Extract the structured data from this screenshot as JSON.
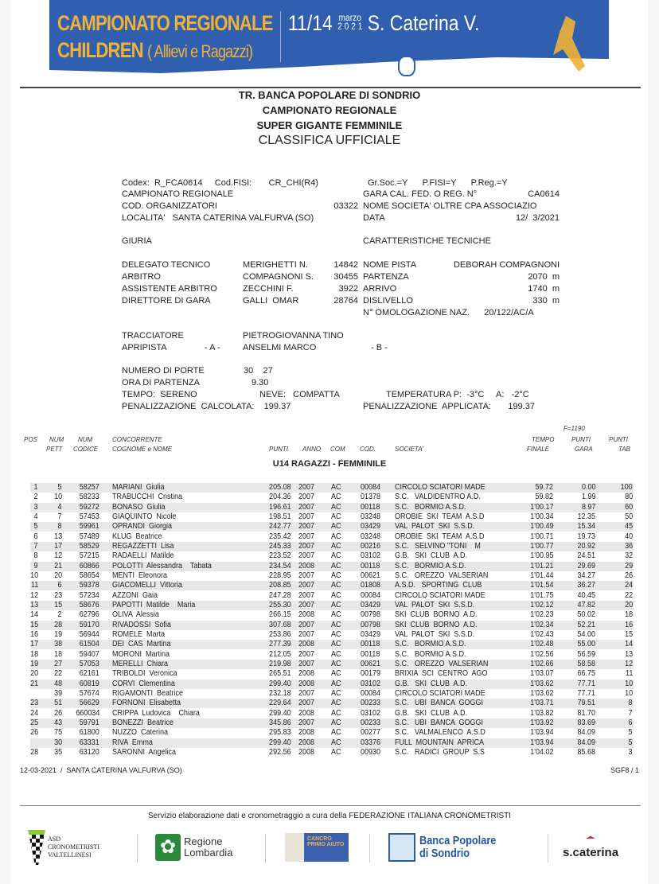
{
  "banner": {
    "line1": "CAMPIONATO REGIONALE",
    "line2": "CHILDREN",
    "line2_sub": "( Allievi e Ragazzi)",
    "dates": "11/14",
    "month": "marzo",
    "year": "2 0 2 1",
    "place": "S. Caterina V."
  },
  "title": {
    "l1": "TR. BANCA POPOLARE DI SONDRIO",
    "l2": "CAMPIONATO REGIONALE",
    "l3": "SUPER GIGANTE FEMMINILE",
    "l4": "CLASSIFICA UFFICIALE"
  },
  "info": {
    "codex": "Codex:  R_FCA0614     Cod.FISI:       CR_CHI(R4)",
    "flags": "Gr.Soc.=Y      P.FISI=Y      P.Reg.=Y",
    "camp": "CAMPIONATO REGIONALE",
    "gara_label": "GARA CAL. FED. O REG. N°",
    "gara_val": "CA0614",
    "cod_org_label": "COD. ORGANIZZATORI",
    "cod_org_val": "03322",
    "nome_soc": "NOME SOCIETA' OLTRE CPA ASSOCIAZIO",
    "localita": "LOCALITA'   SANTA CATERINA VALFURVA (SO)",
    "data_label": "DATA",
    "data_val": "12/  3/2021",
    "giuria": "GIURIA",
    "caratt": "CARATTERISTICHE  TECNICHE",
    "jury": [
      {
        "role": "DELEGATO TECNICO",
        "name": "MERIGHETTI N.",
        "code": "14842",
        "tl": "NOME PISTA",
        "tv": "DEBORAH COMPAGNONI"
      },
      {
        "role": "ARBITRO",
        "name": "COMPAGNONI S.",
        "code": "30455",
        "tl": "PARTENZA",
        "tv": "2070  m"
      },
      {
        "role": "ASSISTENTE ARBITRO",
        "name": "ZECCHINI F.",
        "code": "3922",
        "tl": "ARRIVO",
        "tv": "1740  m"
      },
      {
        "role": "DIRETTORE DI GARA",
        "name": "GALLI  OMAR",
        "code": "28764",
        "tl": "DISLIVELLO",
        "tv": "330  m"
      }
    ],
    "omol": "N° OMOLOGAZIONE NAZ.      20/122/AC/A",
    "tracc_label": "TRACCIATORE",
    "tracc_val": "PIETROGIOVANNA TINO",
    "apri_label": "APRIPISTA",
    "apri_a": "- A -",
    "apri_val": "ANSELMI  MARCO",
    "apri_b": "- B -",
    "porte_label": "NUMERO DI PORTE",
    "porte_val": "30    27",
    "ora_label": "ORA DI PARTENZA",
    "ora_val": "9.30",
    "tempo": "TEMPO:  SERENO",
    "neve": "NEVE:   COMPATTA",
    "temp": "TEMPERATURA P:  -3°C     A:   -2°C",
    "pen_calc": "PENALIZZAZIONE  CALCOLATA:    199.37",
    "pen_appl": "PENALIZZAZIONE  APPLICATA:       199.37"
  },
  "table": {
    "fvalue": "F=1190",
    "headers": {
      "pos": "POS",
      "num": "NUM",
      "pett": "PETT",
      "num2": "NUM",
      "codice": "CODICE",
      "conc": "CONCORRENTE",
      "cognome": "COGNOME e NOME",
      "punti": "PUNTI",
      "anno": "ANNO",
      "com": "COM",
      "cod": "COD.",
      "societa": "SOCIETA'",
      "tempo": "TEMPO",
      "finale": "FINALE",
      "punti2": "PUNTI",
      "gara": "GARA",
      "punti3": "PUNTI",
      "tab": "TAB"
    },
    "group": "U14 RAGAZZI - FEMMINILE",
    "rows": [
      [
        "1",
        "5",
        "58257",
        "MARIANI  Giulia",
        "205.08",
        "2007",
        "AC",
        "00084",
        "CIRCOLO SCIATORI MADE",
        "59.72",
        "0.00",
        "100"
      ],
      [
        "2",
        "10",
        "58233",
        "TRABUCCHI  Cristina",
        "204.36",
        "2007",
        "AC",
        "01378",
        "S.C.   VALDIDENTRO A.D.",
        "59.82",
        "1.99",
        "80"
      ],
      [
        "3",
        "4",
        "59272",
        "BONASO  Giulia",
        "196.61",
        "2007",
        "AC",
        "00118",
        "S.C.   BORMIO A.S.D.",
        "1'00.17",
        "8.97",
        "60"
      ],
      [
        "4",
        "7",
        "57453",
        "GIAQUINTO  Nicole",
        "198.51",
        "2007",
        "AC",
        "03248",
        "OROBIE  SKI  TEAM  A.S.D",
        "1'00.34",
        "12.35",
        "50"
      ],
      [
        "5",
        "8",
        "59961",
        "OPRANDI  Giorgia",
        "242.77",
        "2007",
        "AC",
        "03429",
        "VAL  PALOT  SKI  S.S.D.",
        "1'00.49",
        "15.34",
        "45"
      ],
      [
        "6",
        "13",
        "57489",
        "KLUG  Beatrice",
        "235.42",
        "2007",
        "AC",
        "03248",
        "OROBIE  SKI  TEAM  A.S.D",
        "1'00.71",
        "19.73",
        "40"
      ],
      [
        "7",
        "17",
        "58529",
        "REGAZZETTI  Lisa",
        "245.33",
        "2007",
        "AC",
        "00216",
        "S.C.   SELVINO \"TONI    M",
        "1'00.77",
        "20.92",
        "36"
      ],
      [
        "8",
        "12",
        "57215",
        "RADAELLI  Matilde",
        "223.52",
        "2007",
        "AC",
        "03102",
        "G.B.   SKI  CLUB  A.D.",
        "1'00.95",
        "24.51",
        "32"
      ],
      [
        "9",
        "21",
        "60866",
        "POLOTTI  Alessandra    Tabata",
        "234.54",
        "2008",
        "AC",
        "00118",
        "S.C.   BORMIO A.S.D.",
        "1'01.21",
        "29.69",
        "29"
      ],
      [
        "10",
        "20",
        "58654",
        "MENTI  Eleonora",
        "228.95",
        "2007",
        "AC",
        "00621",
        "S.C.   OREZZO  VALSERIAN",
        "1'01.44",
        "34.27",
        "26"
      ],
      [
        "11",
        "6",
        "59378",
        "GIACOMELLI  Vittoria",
        "208.85",
        "2007",
        "AC",
        "01808",
        "A.S.D.   SPORTING  CLUB",
        "1'01.54",
        "36.27",
        "24"
      ],
      [
        "12",
        "23",
        "57234",
        "AZZONI  Gaia",
        "247.28",
        "2007",
        "AC",
        "00084",
        "CIRCOLO SCIATORI MADE",
        "1'01.75",
        "40.45",
        "22"
      ],
      [
        "13",
        "15",
        "58676",
        "PAPOTTI  Matilde    Maria",
        "255.30",
        "2007",
        "AC",
        "03429",
        "VAL  PALOT  SKI  S.S.D.",
        "1'02.12",
        "47.82",
        "20"
      ],
      [
        "14",
        "2",
        "62796",
        "OLIVA  Alessia",
        "266.15",
        "2008",
        "AC",
        "00798",
        "SKI  CLUB  BORNO  A.D.",
        "1'02.23",
        "50.02",
        "18"
      ],
      [
        "15",
        "28",
        "59170",
        "RIVADOSSI  Sofia",
        "307.68",
        "2007",
        "AC",
        "00798",
        "SKI  CLUB  BORNO  A.D.",
        "1'02.34",
        "52.21",
        "16"
      ],
      [
        "16",
        "19",
        "56944",
        "ROMELE  Marta",
        "253.86",
        "2007",
        "AC",
        "03429",
        "VAL  PALOT  SKI  S.S.D.",
        "1'02.43",
        "54.00",
        "15"
      ],
      [
        "17",
        "38",
        "61504",
        "DEI  CAS  Martina",
        "277.39",
        "2008",
        "AC",
        "00118",
        "S.C.   BORMIO A.S.D.",
        "1'02.48",
        "55.00",
        "14"
      ],
      [
        "18",
        "18",
        "59407",
        "MORONI  Martina",
        "212.05",
        "2007",
        "AC",
        "00118",
        "S.C.   BORMIO A.S.D.",
        "1'02.56",
        "56.59",
        "13"
      ],
      [
        "19",
        "27",
        "57053",
        "MERELLI  Chiara",
        "219.98",
        "2007",
        "AC",
        "00621",
        "S.C.   OREZZO  VALSERIAN",
        "1'02.66",
        "58.58",
        "12"
      ],
      [
        "20",
        "22",
        "62161",
        "TRIBOLDI  Veronica",
        "265.51",
        "2008",
        "AC",
        "00179",
        "BRIXIA  SCI  CENTRO  AGO",
        "1'03.07",
        "66.75",
        "11"
      ],
      [
        "21",
        "48",
        "60819",
        "CORVI  Clementina",
        "299.40",
        "2008",
        "AC",
        "03102",
        "G.B.   SKI  CLUB  A.D.",
        "1'03.62",
        "77.71",
        "10"
      ],
      [
        "",
        "39",
        "57674",
        "RIGAMONTI  Beatrice",
        "232.18",
        "2007",
        "AC",
        "00084",
        "CIRCOLO SCIATORI MADE",
        "1'03.62",
        "77.71",
        "10"
      ],
      [
        "23",
        "51",
        "56629",
        "FORNONI  Elisabetta",
        "229.64",
        "2007",
        "AC",
        "00233",
        "S.C.   UBI  BANCA  GOGGI",
        "1'03.71",
        "79.51",
        "8"
      ],
      [
        "24",
        "26",
        "660034",
        "CRIPPA  Ludovica    Chiara",
        "299.40",
        "2008",
        "AC",
        "03102",
        "G.B.   SKI  CLUB  A.D.",
        "1'03.82",
        "81.70",
        "7"
      ],
      [
        "25",
        "43",
        "59791",
        "BONEZZI  Beatrice",
        "345.86",
        "2007",
        "AC",
        "00233",
        "S.C.   UBI  BANCA  GOGGI",
        "1'03.92",
        "83.69",
        "6"
      ],
      [
        "26",
        "75",
        "61800",
        "NUZZO  Caterina",
        "295.83",
        "2008",
        "AC",
        "00277",
        "S.C.   VALMALENCO  A.S.D",
        "1'03.94",
        "84.09",
        "5"
      ],
      [
        "",
        "30",
        "63331",
        "RIVA  Emma",
        "299.40",
        "2008",
        "AC",
        "03376",
        "FULL  MOUNTAIN  APRICA",
        "1'03.94",
        "84.09",
        "5"
      ],
      [
        "28",
        "35",
        "63120",
        "SARONNI  Angelica",
        "292.56",
        "2008",
        "AC",
        "00930",
        "S.C.   RADICI  GROUP  S.S",
        "1'04.02",
        "85.68",
        "3"
      ]
    ]
  },
  "footer": {
    "date_place": "12-03-2021  /  SANTA CATERINA VALFURVA (SO)",
    "page": "SGF8 / 1",
    "service": "Servizio elaborazione dati e cronometraggio a cura della FEDERAZIONE ITALIANA CRONOMETRISTI",
    "logos": {
      "asd": "ASD CRONOMETRISTI VALTELLINESI",
      "regione1": "Regione",
      "regione2": "Lombardia",
      "cancro": "CANCRO PRIMO AIUTO",
      "banca1": "Banca Popolare",
      "banca2": "di Sondrio",
      "scaterina": "s.caterina"
    }
  },
  "colors": {
    "banner_blue": "#2f5fae",
    "banner_yellow": "#f0b13a",
    "row_shade": "#e8e8e8"
  }
}
